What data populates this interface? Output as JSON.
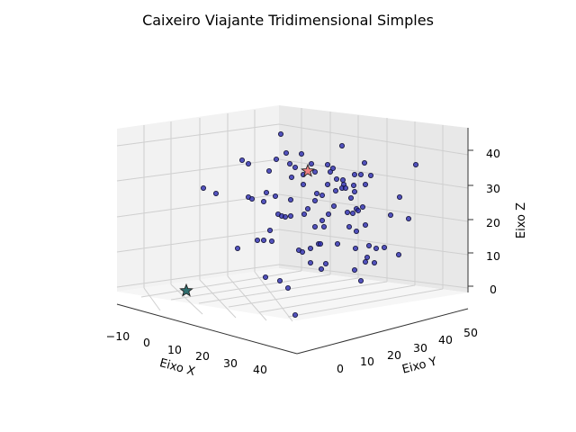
{
  "chart_data": {
    "type": "scatter",
    "projection": "3d",
    "title": "Caixeiro Viajante Tridimensional Simples",
    "xlabel": "Eixo X",
    "ylabel": "Eixo Y",
    "zlabel": "Eixo Z",
    "xticks": [
      "−10",
      "0",
      "10",
      "20",
      "30",
      "40"
    ],
    "yticks": [
      "0",
      "10",
      "20",
      "30",
      "40",
      "50"
    ],
    "zticks": [
      "0",
      "10",
      "20",
      "30",
      "40"
    ],
    "grid": true,
    "colors": {
      "points": "#2b2bb0",
      "points_edge": "#111133",
      "start_marker": "#f08080",
      "end_marker": "#2f6f6f",
      "pane_back": "#f2f2f2",
      "pane_side": "#e6e6e6",
      "pane_floor": "#f5f5f5",
      "grid": "#cfcfcf"
    },
    "points_markers": "circle",
    "highlighted_points": [
      {
        "marker": "star",
        "color": "#f08080",
        "x": 22,
        "y": 35,
        "z": 34
      },
      {
        "marker": "star",
        "color": "#2f6f6f",
        "x": -5,
        "y": 0,
        "z": 1
      }
    ]
  }
}
